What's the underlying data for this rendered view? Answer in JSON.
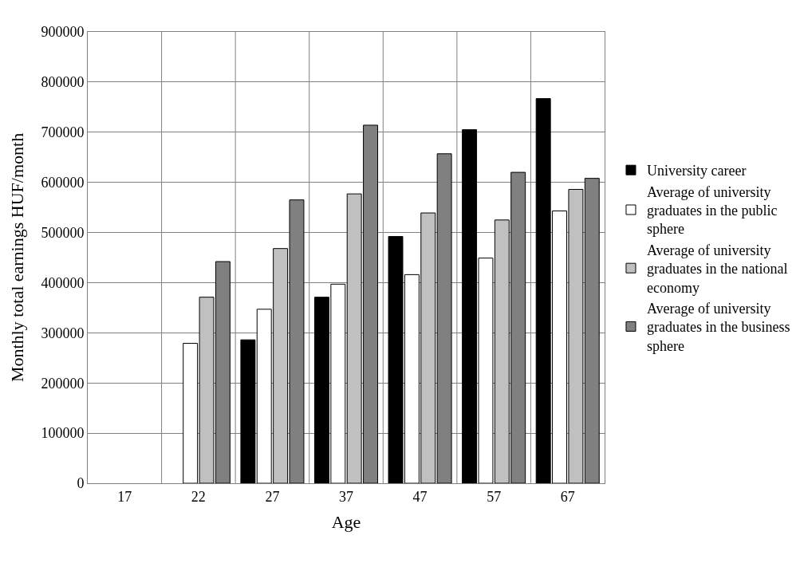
{
  "chart_data": {
    "type": "bar",
    "xlabel": "Age",
    "ylabel": "Monthly total earnings HUF/month",
    "categories": [
      "17",
      "22",
      "27",
      "37",
      "47",
      "57",
      "67"
    ],
    "series": [
      {
        "name": "University career",
        "color": "#000000",
        "values": [
          null,
          null,
          286000,
          371000,
          492000,
          705000,
          767000
        ]
      },
      {
        "name": "Average of university graduates in the public sphere",
        "color": "#ffffff",
        "values": [
          null,
          279000,
          347000,
          397000,
          416000,
          449000,
          543000
        ]
      },
      {
        "name": "Average of university graduates in the national economy",
        "color": "#c0c0c0",
        "values": [
          null,
          371000,
          468000,
          577000,
          539000,
          525000,
          586000
        ]
      },
      {
        "name": "Average of university graduates in the business sphere",
        "color": "#808080",
        "values": [
          null,
          442000,
          565000,
          714000,
          657000,
          620000,
          608000
        ]
      }
    ],
    "ylim": [
      0,
      900000
    ],
    "yticks": [
      0,
      100000,
      200000,
      300000,
      400000,
      500000,
      600000,
      700000,
      800000,
      900000
    ],
    "grid": true,
    "legend": "right"
  }
}
